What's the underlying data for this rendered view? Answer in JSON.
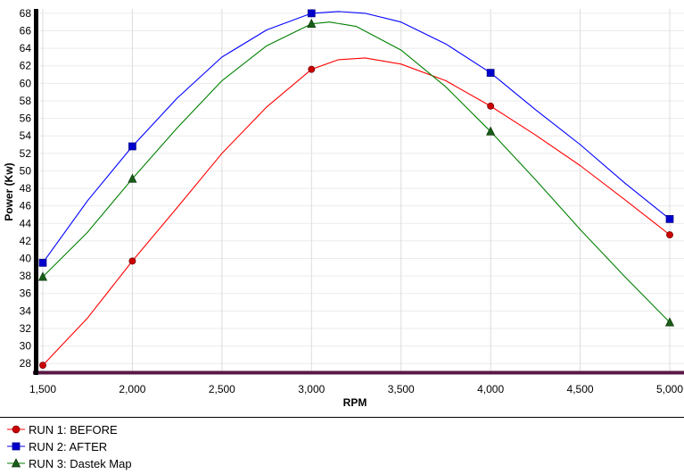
{
  "chart_data": {
    "type": "line",
    "xlabel": "RPM",
    "ylabel": "Power (Kw)",
    "xlim": [
      1500,
      5000
    ],
    "ylim": [
      27,
      68.5
    ],
    "x_ticks": [
      1500,
      2000,
      2500,
      3000,
      3500,
      4000,
      4500,
      5000
    ],
    "x_tick_labels": [
      "1,500",
      "2,000",
      "2,500",
      "3,000",
      "3,500",
      "4,000",
      "4,500",
      "5,000"
    ],
    "y_ticks": [
      28,
      30,
      32,
      34,
      36,
      38,
      40,
      42,
      44,
      46,
      48,
      50,
      52,
      54,
      56,
      58,
      60,
      62,
      64,
      66,
      68
    ],
    "y_tick_labels": [
      "28",
      "30",
      "32",
      "34",
      "36",
      "38",
      "40",
      "42",
      "44",
      "46",
      "48",
      "50",
      "52",
      "54",
      "56",
      "58",
      "60",
      "62",
      "64",
      "66",
      "68"
    ],
    "grid": true,
    "legend_position": "bottom-left",
    "series": [
      {
        "name": "RUN 1: BEFORE",
        "color": "#ff0000",
        "marker": "circle",
        "marker_color": "#cc0000",
        "points": [
          [
            1500,
            27.8
          ],
          [
            2000,
            39.7
          ],
          [
            3000,
            61.6
          ],
          [
            4000,
            57.4
          ],
          [
            5000,
            42.7
          ]
        ],
        "curve": [
          [
            1500,
            27.8
          ],
          [
            1750,
            33.2
          ],
          [
            2000,
            39.7
          ],
          [
            2250,
            45.8
          ],
          [
            2500,
            52.0
          ],
          [
            2750,
            57.3
          ],
          [
            3000,
            61.6
          ],
          [
            3150,
            62.7
          ],
          [
            3300,
            62.9
          ],
          [
            3500,
            62.2
          ],
          [
            3750,
            60.3
          ],
          [
            4000,
            57.4
          ],
          [
            4250,
            54.1
          ],
          [
            4500,
            50.6
          ],
          [
            4750,
            46.7
          ],
          [
            5000,
            42.7
          ]
        ]
      },
      {
        "name": "RUN 2: AFTER",
        "color": "#0000ff",
        "marker": "square",
        "marker_color": "#0000cc",
        "points": [
          [
            1500,
            39.5
          ],
          [
            2000,
            52.8
          ],
          [
            3000,
            68.0
          ],
          [
            4000,
            61.2
          ],
          [
            5000,
            44.5
          ]
        ],
        "curve": [
          [
            1500,
            39.5
          ],
          [
            1750,
            46.6
          ],
          [
            2000,
            52.8
          ],
          [
            2250,
            58.3
          ],
          [
            2500,
            63.0
          ],
          [
            2750,
            66.1
          ],
          [
            3000,
            68.0
          ],
          [
            3150,
            68.2
          ],
          [
            3300,
            68.0
          ],
          [
            3500,
            67.0
          ],
          [
            3750,
            64.5
          ],
          [
            4000,
            61.2
          ],
          [
            4250,
            57.0
          ],
          [
            4500,
            53.0
          ],
          [
            4750,
            48.6
          ],
          [
            5000,
            44.5
          ]
        ]
      },
      {
        "name": "RUN 3: Dastek Map",
        "color": "#008000",
        "marker": "triangle",
        "marker_color": "#1a5c1a",
        "points": [
          [
            1500,
            37.9
          ],
          [
            2000,
            49.1
          ],
          [
            3000,
            66.8
          ],
          [
            4000,
            54.5
          ],
          [
            5000,
            32.7
          ]
        ],
        "curve": [
          [
            1500,
            37.9
          ],
          [
            1750,
            43.0
          ],
          [
            2000,
            49.1
          ],
          [
            2250,
            54.9
          ],
          [
            2500,
            60.3
          ],
          [
            2750,
            64.3
          ],
          [
            3000,
            66.8
          ],
          [
            3100,
            67.0
          ],
          [
            3250,
            66.5
          ],
          [
            3500,
            63.8
          ],
          [
            3750,
            59.6
          ],
          [
            4000,
            54.5
          ],
          [
            4250,
            49.0
          ],
          [
            4500,
            43.3
          ],
          [
            4750,
            37.9
          ],
          [
            5000,
            32.7
          ]
        ]
      }
    ]
  }
}
